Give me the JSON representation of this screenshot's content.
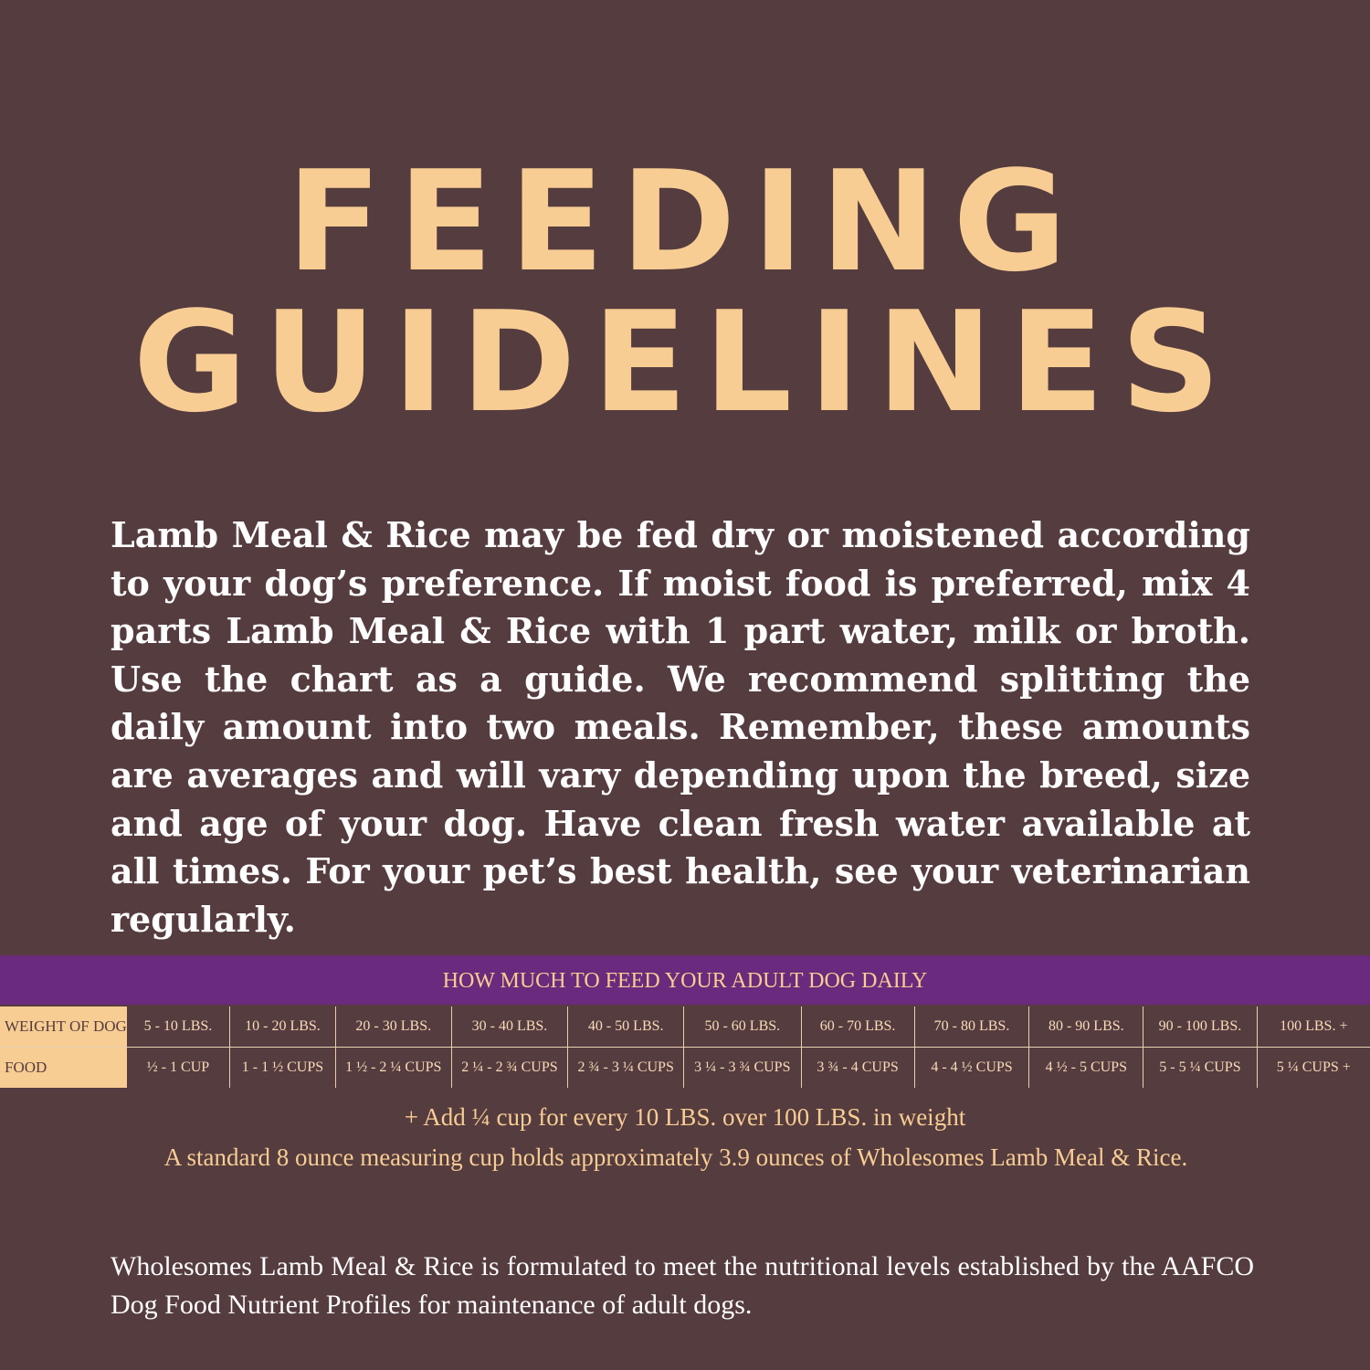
{
  "title": {
    "line1": "FEEDING",
    "line2": "GUIDELINES"
  },
  "intro": "Lamb Meal & Rice may be fed dry or moistened according to your dog’s preference. If moist food is preferred, mix 4 parts Lamb Meal & Rice with 1 part water, milk or broth. Use the chart as a guide. We recommend splitting the daily amount into two meals. Remember, these amounts are averages and will vary depending upon the breed, size and age of your dog. Have clean fresh water available at all times. For your pet’s best health, see your veterinarian regularly.",
  "table": {
    "heading": "HOW MUCH TO FEED YOUR ADULT DOG DAILY",
    "row_labels": [
      "WEIGHT OF DOG",
      "FOOD"
    ],
    "weights": [
      "5 - 10 LBS.",
      "10 - 20 LBS.",
      "20 - 30 LBS.",
      "30 - 40 LBS.",
      "40 - 50 LBS.",
      "50 - 60 LBS.",
      "60 - 70 LBS.",
      "70 - 80 LBS.",
      "80 - 90 LBS.",
      "90 - 100 LBS.",
      "100 LBS. +"
    ],
    "food": [
      "½ - 1 CUP",
      "1 - 1 ½ CUPS",
      "1 ½ - 2 ¼ CUPS",
      "2 ¼ - 2 ¾ CUPS",
      "2 ¾ - 3 ¼ CUPS",
      "3 ¼ - 3 ¾ CUPS",
      "3 ¾ - 4 CUPS",
      "4 - 4 ½ CUPS",
      "4 ½ - 5 CUPS",
      "5 - 5 ¼ CUPS",
      "5 ¼ CUPS +"
    ]
  },
  "notes": {
    "add": "+ Add ¼ cup for every 10 LBS. over 100 LBS. in weight",
    "cup": "A standard 8 ounce measuring cup holds approximately 3.9 ounces of Wholesomes Lamb Meal & Rice."
  },
  "footer": "Wholesomes Lamb Meal & Rice is formulated to meet the nutritional levels established by the AAFCO Dog Food Nutrient Profiles for maintenance of adult dogs.",
  "colors": {
    "background": "#553c3f",
    "accent": "#f8cd93",
    "band": "#6a2a7d"
  }
}
